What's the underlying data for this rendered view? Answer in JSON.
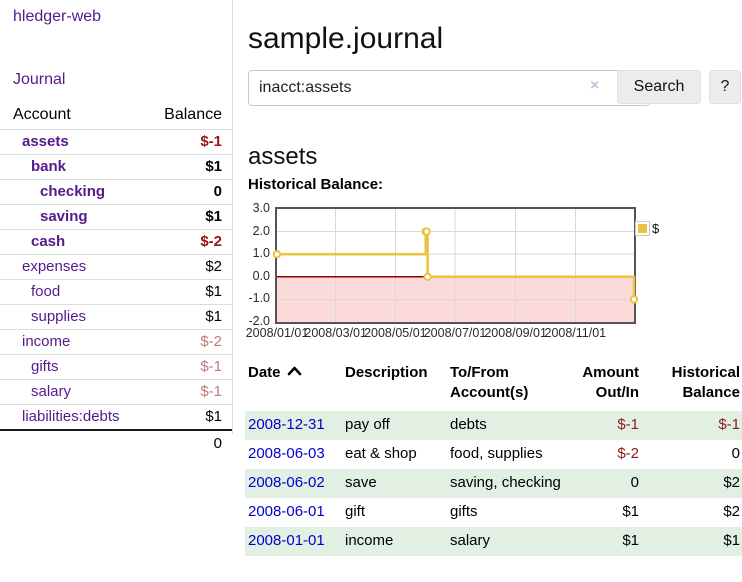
{
  "app": {
    "brand": "hledger-web",
    "nav_journal": "Journal"
  },
  "sidebar": {
    "header": {
      "account": "Account",
      "balance": "Balance"
    },
    "rows": [
      {
        "name": "assets",
        "depth": 1,
        "balance": "$-1",
        "bold": true,
        "neg": "strong",
        "blue": false
      },
      {
        "name": "bank",
        "depth": 2,
        "balance": "$1",
        "bold": true,
        "neg": "",
        "blue": false
      },
      {
        "name": "checking",
        "depth": 3,
        "balance": "0",
        "bold": true,
        "neg": "",
        "blue": false
      },
      {
        "name": "saving",
        "depth": 3,
        "balance": "$1",
        "bold": true,
        "neg": "",
        "blue": false
      },
      {
        "name": "cash",
        "depth": 2,
        "balance": "$-2",
        "bold": true,
        "neg": "strong",
        "blue": false
      },
      {
        "name": "expenses",
        "depth": 1,
        "balance": "$2",
        "bold": false,
        "neg": "",
        "blue": false
      },
      {
        "name": "food",
        "depth": 2,
        "balance": "$1",
        "bold": false,
        "neg": "",
        "blue": false
      },
      {
        "name": "supplies",
        "depth": 2,
        "balance": "$1",
        "bold": false,
        "neg": "",
        "blue": false
      },
      {
        "name": "income",
        "depth": 1,
        "balance": "$-2",
        "bold": false,
        "neg": "muted",
        "blue": false
      },
      {
        "name": "gifts",
        "depth": 2,
        "balance": "$-1",
        "bold": false,
        "neg": "muted",
        "blue": false
      },
      {
        "name": "salary",
        "depth": 2,
        "balance": "$-1",
        "bold": false,
        "neg": "muted",
        "blue": true
      },
      {
        "name": "liabilities:debts",
        "depth": 1,
        "balance": "$1",
        "bold": false,
        "neg": "",
        "blue": false
      }
    ],
    "total": "0"
  },
  "header": {
    "title": "sample.journal"
  },
  "search": {
    "value": "inacct:assets",
    "clear_icon": "×",
    "button_label": "Search",
    "help_label": "?"
  },
  "register": {
    "heading": "assets",
    "chart_label": "Historical Balance:",
    "table": {
      "headers": [
        "Date",
        "Description",
        "To/From Account(s)",
        "Amount Out/In",
        "Historical Balance"
      ],
      "rows": [
        {
          "date": "2008-12-31",
          "description": "pay off",
          "accounts": "debts",
          "amount": "$-1",
          "amount_negative": true,
          "balance": "$-1",
          "balance_negative": true
        },
        {
          "date": "2008-06-03",
          "description": "eat & shop",
          "accounts": "food, supplies",
          "amount": "$-2",
          "amount_negative": true,
          "balance": "0",
          "balance_negative": false
        },
        {
          "date": "2008-06-02",
          "description": "save",
          "accounts": "saving, checking",
          "amount": "0",
          "amount_negative": false,
          "balance": "$2",
          "balance_negative": false
        },
        {
          "date": "2008-06-01",
          "description": "gift",
          "accounts": "gifts",
          "amount": "$1",
          "amount_negative": false,
          "balance": "$2",
          "balance_negative": false
        },
        {
          "date": "2008-01-01",
          "description": "income",
          "accounts": "salary",
          "amount": "$1",
          "amount_negative": false,
          "balance": "$1",
          "balance_negative": false
        }
      ]
    }
  },
  "chart_data": {
    "type": "line",
    "title": "Historical Balance",
    "step": true,
    "series": [
      {
        "name": "$",
        "color": "#edc240",
        "points": [
          [
            0,
            1
          ],
          [
            152,
            2
          ],
          [
            153,
            2
          ],
          [
            154,
            0
          ],
          [
            365,
            -1
          ]
        ]
      }
    ],
    "x_range_days": [
      0,
      365
    ],
    "x_tick_days": [
      0,
      60,
      121,
      182,
      244,
      305
    ],
    "x_tick_labels": [
      "2008/01/01",
      "2008/03/01",
      "2008/05/01",
      "2008/07/01",
      "2008/09/01",
      "2008/11/01"
    ],
    "y_ticks": [
      3,
      2,
      1,
      0,
      -1,
      -2
    ],
    "y_tick_labels": [
      "3.0",
      "2.0",
      "1.0",
      "0.0",
      "-1.0",
      "-2.0"
    ],
    "ylim": [
      -2,
      3
    ],
    "grid": true,
    "legend_position": "top-right",
    "colors": {
      "gridline": "#d8d8d8",
      "plot_border": "#545454",
      "negative_region": "#fcdada",
      "zero_line": "#8b0000",
      "marker_fill": "#ffffff"
    }
  }
}
